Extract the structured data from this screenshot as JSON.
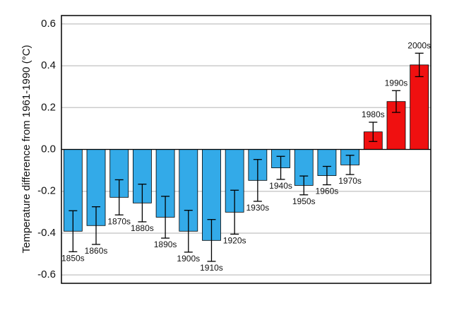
{
  "chart_data": {
    "type": "bar",
    "y_label": "Temperature difference from 1961-1990 (°C)",
    "categories": [
      "1850s",
      "1860s",
      "1870s",
      "1880s",
      "1890s",
      "1900s",
      "1910s",
      "1920s",
      "1930s",
      "1940s",
      "1950s",
      "1960s",
      "1970s",
      "1980s",
      "1990s",
      "2000s"
    ],
    "values": [
      -0.391,
      -0.364,
      -0.229,
      -0.256,
      -0.324,
      -0.391,
      -0.435,
      -0.3,
      -0.148,
      -0.088,
      -0.172,
      -0.125,
      -0.074,
      0.084,
      0.229,
      0.404
    ],
    "errors": [
      0.098,
      0.09,
      0.084,
      0.09,
      0.1,
      0.1,
      0.1,
      0.105,
      0.1,
      0.055,
      0.045,
      0.044,
      0.046,
      0.046,
      0.052,
      0.056
    ],
    "negative_color": "#33aae8",
    "positive_color": "#f01010",
    "ylim": [
      -0.64,
      0.64
    ],
    "yticks": [
      {
        "value": -0.6,
        "label": "-0.6"
      },
      {
        "value": -0.4,
        "label": "-0.4"
      },
      {
        "value": -0.2,
        "label": "-0.2"
      },
      {
        "value": 0,
        "label": "0.0"
      },
      {
        "value": 0.2,
        "label": "0.2"
      },
      {
        "value": 0.4,
        "label": "0.4"
      },
      {
        "value": 0.6,
        "label": "0.6"
      }
    ],
    "grid": true
  }
}
